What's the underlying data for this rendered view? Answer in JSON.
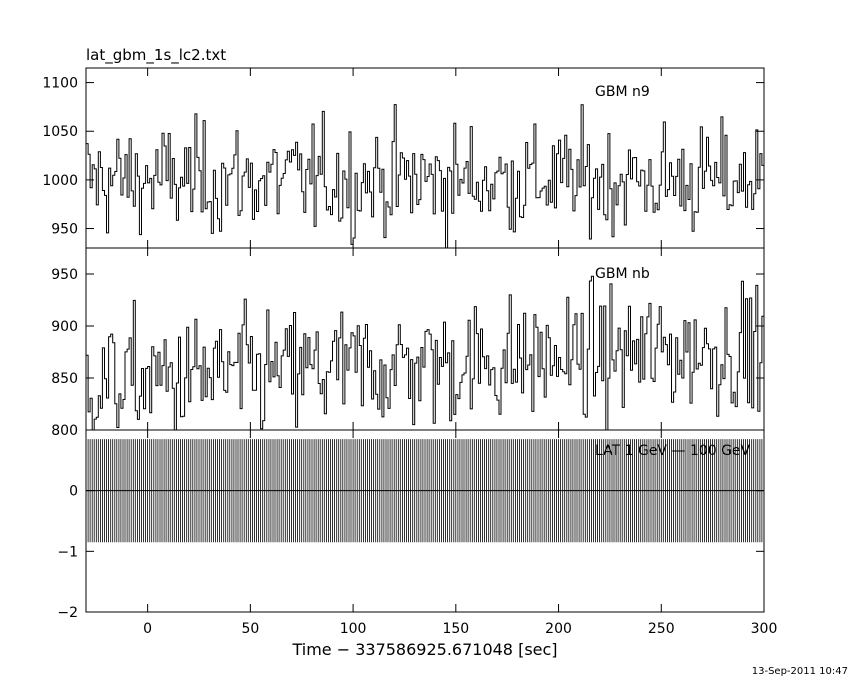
{
  "figure": {
    "title": "lat_gbm_1s_lc2.txt",
    "xlabel": "Time − 337586925.671048 [sec]",
    "timestamp": "13-Sep-2011 10:47"
  },
  "chart_data": [
    {
      "type": "line",
      "series_style": "histogram-steps",
      "label": "GBM n9",
      "xlim": [
        -30,
        300
      ],
      "ylim": [
        930,
        1115
      ],
      "yticks": [
        950,
        1000,
        1050,
        1100
      ],
      "ytick_labels": [
        "950",
        "1000",
        "1050",
        "1100"
      ],
      "series": [
        {
          "name": "GBM n9",
          "mean": 1000,
          "stdev": 28,
          "dt": 1
        }
      ]
    },
    {
      "type": "line",
      "series_style": "histogram-steps",
      "label": "GBM nb",
      "xlim": [
        -30,
        300
      ],
      "ylim": [
        800,
        975
      ],
      "yticks": [
        800,
        850,
        900,
        950
      ],
      "ytick_labels": [
        "800",
        "850",
        "900",
        "950"
      ],
      "series": [
        {
          "name": "GBM nb",
          "mean_start": 845,
          "mean_end": 880,
          "stdev": 30,
          "dt": 1
        }
      ]
    },
    {
      "type": "bar",
      "series_style": "histogram-steps",
      "label": "LAT 1 GeV — 100 GeV",
      "xlim": [
        -30,
        300
      ],
      "ylim": [
        -2,
        1
      ],
      "yticks": [
        -2,
        -1,
        0
      ],
      "ytick_labels": [
        "−2",
        "−1",
        "0"
      ],
      "series": [
        {
          "name": "LAT 1 GeV — 100 GeV",
          "value": 0,
          "error_bar": 0.85,
          "dt": 1
        }
      ]
    }
  ],
  "xaxis": {
    "ticks": [
      0,
      50,
      100,
      150,
      200,
      250,
      300
    ],
    "tick_labels": [
      "0",
      "50",
      "100",
      "150",
      "200",
      "250",
      "300"
    ]
  }
}
